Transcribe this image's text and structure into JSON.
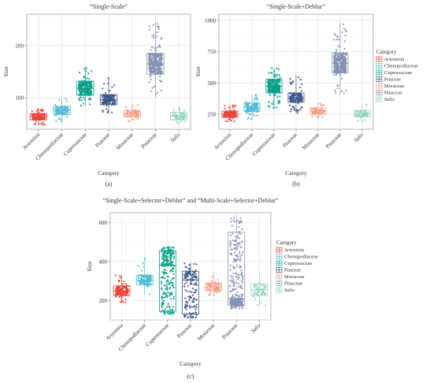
{
  "legend": {
    "title": "Category",
    "entries": [
      "Artemisia",
      "Chenopodiaceae",
      "Cupressaceae",
      "Poaceae",
      "Moraceae",
      "Pinaceae",
      "Salix"
    ]
  },
  "colors": {
    "Artemisia": "#E8443A",
    "Chenopodiaceae": "#4DBBD5",
    "Cupressaceae": "#00A087",
    "Poaceae": "#3C5488",
    "Moraceae": "#F39B7F",
    "Pinaceae": "#8491B4",
    "Salix": "#91D1C2"
  },
  "chart_data": [
    {
      "panel": "(a)",
      "type": "box-jitter",
      "title": "“Single-Scale”",
      "xlabel": "Category",
      "ylabel": "Size",
      "categories": [
        "Artemisia",
        "Chenopodiaceae",
        "Cupressaceae",
        "Poaceae",
        "Moraceae",
        "Pinaceae",
        "Salix"
      ],
      "ylim": [
        40,
        260
      ],
      "yticks": [
        100,
        200
      ],
      "stats": [
        {
          "min": 48,
          "q1": 58,
          "median": 64,
          "q3": 70,
          "max": 80,
          "n": 160
        },
        {
          "min": 55,
          "q1": 68,
          "median": 76,
          "q3": 84,
          "max": 100,
          "n": 120
        },
        {
          "min": 85,
          "q1": 105,
          "median": 118,
          "q3": 132,
          "max": 158,
          "n": 240
        },
        {
          "min": 70,
          "q1": 87,
          "median": 96,
          "q3": 106,
          "max": 140,
          "n": 150
        },
        {
          "min": 55,
          "q1": 64,
          "median": 70,
          "q3": 76,
          "max": 88,
          "n": 70
        },
        {
          "min": 100,
          "q1": 145,
          "median": 165,
          "q3": 185,
          "max": 245,
          "n": 330
        },
        {
          "min": 48,
          "q1": 58,
          "median": 65,
          "q3": 72,
          "max": 84,
          "n": 60
        }
      ]
    },
    {
      "panel": "(b)",
      "type": "box-jitter",
      "title": "“Single-Scale+Deblur”",
      "xlabel": "Category",
      "ylabel": "Size",
      "categories": [
        "Artemisia",
        "Chenopodiaceae",
        "Cupressaceae",
        "Poaceae",
        "Moraceae",
        "Pinaceae",
        "Salix"
      ],
      "ylim": [
        130,
        1050
      ],
      "yticks": [
        250,
        500,
        750,
        1000
      ],
      "stats": [
        {
          "min": 190,
          "q1": 225,
          "median": 250,
          "q3": 275,
          "max": 330,
          "n": 160
        },
        {
          "min": 210,
          "q1": 270,
          "median": 305,
          "q3": 340,
          "max": 410,
          "n": 120
        },
        {
          "min": 300,
          "q1": 420,
          "median": 475,
          "q3": 530,
          "max": 620,
          "n": 240
        },
        {
          "min": 260,
          "q1": 345,
          "median": 380,
          "q3": 420,
          "max": 560,
          "n": 150
        },
        {
          "min": 210,
          "q1": 250,
          "median": 275,
          "q3": 300,
          "max": 350,
          "n": 70
        },
        {
          "min": 400,
          "q1": 580,
          "median": 655,
          "q3": 740,
          "max": 980,
          "n": 330
        },
        {
          "min": 180,
          "q1": 230,
          "median": 255,
          "q3": 280,
          "max": 330,
          "n": 60
        }
      ]
    },
    {
      "panel": "(c)",
      "type": "box-jitter",
      "title": "“Single-Scale+Selector+Deblur” and “Multi-Scale+Selector+Deblur”",
      "xlabel": "Category",
      "ylabel": "Size",
      "categories": [
        "Artemisia",
        "Chenopodiaceae",
        "Cupressaceae",
        "Poaceae",
        "Moraceae",
        "Pinaceae",
        "Salix"
      ],
      "ylim": [
        100,
        650
      ],
      "yticks": [
        200,
        400,
        600
      ],
      "stats": [
        {
          "min": 190,
          "q1": 225,
          "median": 250,
          "q3": 275,
          "max": 330,
          "n": 160
        },
        {
          "min": 230,
          "q1": 280,
          "median": 305,
          "q3": 330,
          "max": 420,
          "n": 120
        },
        {
          "min": 130,
          "q1": 145,
          "median": 380,
          "q3": 455,
          "max": 475,
          "n": 240
        },
        {
          "min": 110,
          "q1": 130,
          "median": 305,
          "q3": 350,
          "max": 395,
          "n": 150
        },
        {
          "min": 220,
          "q1": 250,
          "median": 270,
          "q3": 290,
          "max": 350,
          "n": 70
        },
        {
          "min": 155,
          "q1": 175,
          "median": 210,
          "q3": 550,
          "max": 635,
          "n": 330
        },
        {
          "min": 170,
          "q1": 225,
          "median": 255,
          "q3": 285,
          "max": 330,
          "n": 60
        }
      ]
    }
  ]
}
